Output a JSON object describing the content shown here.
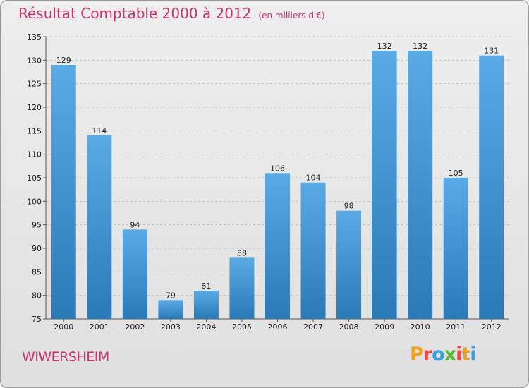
{
  "title": "Résultat Comptable 2000 à 2012",
  "subtitle": "(en milliers d'€)",
  "commune": "WIWERSHEIM",
  "logo": {
    "letters": [
      "P",
      "r",
      "o",
      "x",
      "i",
      "t",
      "i"
    ]
  },
  "colors": {
    "title": "#c8326e",
    "bar_light": "#5aaae6",
    "bar_dark": "#2a7ab8"
  },
  "chart_data": {
    "type": "bar",
    "title": "Résultat Comptable 2000 à 2012",
    "ylabel": "en milliers d'€",
    "xlabel": "",
    "categories": [
      "2000",
      "2001",
      "2002",
      "2003",
      "2004",
      "2005",
      "2006",
      "2007",
      "2008",
      "2009",
      "2010",
      "2011",
      "2012"
    ],
    "values": [
      129,
      114,
      94,
      79,
      81,
      88,
      106,
      104,
      98,
      132,
      132,
      105,
      131
    ],
    "ylim": [
      75,
      135
    ],
    "yticks": [
      75,
      80,
      85,
      90,
      95,
      100,
      105,
      110,
      115,
      120,
      125,
      130,
      135
    ],
    "grid": true
  }
}
